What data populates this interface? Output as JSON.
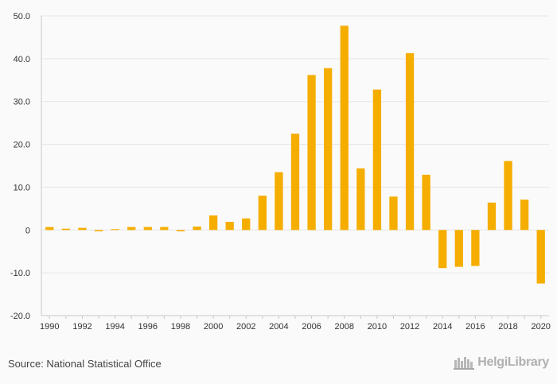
{
  "chart_data": {
    "type": "bar",
    "categories": [
      "1990",
      "1991",
      "1992",
      "1993",
      "1994",
      "1995",
      "1996",
      "1997",
      "1998",
      "1999",
      "2000",
      "2001",
      "2002",
      "2003",
      "2004",
      "2005",
      "2006",
      "2007",
      "2008",
      "2009",
      "2010",
      "2011",
      "2012",
      "2013",
      "2014",
      "2015",
      "2016",
      "2017",
      "2018",
      "2019",
      "2020"
    ],
    "x_tick_labels": [
      "1990",
      "1992",
      "1994",
      "1996",
      "1998",
      "2000",
      "2002",
      "2004",
      "2006",
      "2008",
      "2010",
      "2012",
      "2014",
      "2016",
      "2018",
      "2020"
    ],
    "values": [
      0.7,
      0.3,
      0.5,
      -0.3,
      0.2,
      0.7,
      0.7,
      0.7,
      -0.3,
      0.8,
      3.4,
      1.9,
      2.7,
      8.0,
      13.5,
      22.5,
      36.2,
      37.8,
      47.7,
      14.4,
      32.8,
      7.8,
      41.3,
      12.9,
      -8.9,
      -8.6,
      -8.4,
      6.4,
      16.1,
      7.1,
      -12.5
    ],
    "ylim": [
      -20,
      50
    ],
    "y_ticks": [
      -20,
      -10,
      0,
      10,
      20,
      30,
      40,
      50
    ],
    "y_tick_labels": [
      "-20.0",
      "-10.0",
      "0",
      "10.0",
      "20.0",
      "30.0",
      "40.0",
      "50.0"
    ],
    "bar_color": "#f5ad00",
    "grid": true,
    "title": "",
    "xlabel": "",
    "ylabel": ""
  },
  "footer": {
    "source": "Source: National Statistical Office",
    "brand": "HelgiLibrary"
  },
  "colors": {
    "background": "#fafafa",
    "grid": "#e6e6e6",
    "axis": "#c8c8c8"
  }
}
